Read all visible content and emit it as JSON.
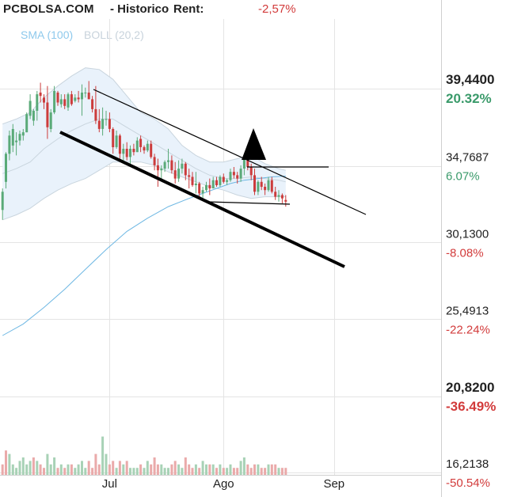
{
  "header": {
    "site": "PCBOLSA.COM",
    "page": "- Historico",
    "rent_label": "Rent:",
    "rent_value": "-2,57%"
  },
  "legend": {
    "sma": "SMA (100)",
    "boll": "BOLL (20,2)"
  },
  "colors": {
    "up": "#5aaa78",
    "down": "#cc3c3c",
    "sma": "#6db7e3",
    "boll_fill": "#e9f2fb",
    "boll_line": "#c9d5de",
    "grid": "#e4e4e4",
    "volume_up": "#a8d2b6",
    "volume_down": "#eaaaaa"
  },
  "chart_data": {
    "type": "candlestick",
    "y_axis": {
      "ticks": [
        {
          "value": 39.44,
          "label": "39,4400",
          "pct": "20.32%",
          "bold": true
        },
        {
          "value": 34.7687,
          "label": "34,7687",
          "pct": "6.07%",
          "bold": false
        },
        {
          "value": 30.13,
          "label": "30,1300",
          "pct": "-8.08%",
          "bold": false
        },
        {
          "value": 25.4913,
          "label": "25,4913",
          "pct": "-22.24%",
          "bold": false
        },
        {
          "value": 20.82,
          "label": "20,8200",
          "pct": "-36.49%",
          "bold": true
        },
        {
          "value": 16.2138,
          "label": "16,2138",
          "pct": "-50.54%",
          "bold": false
        }
      ],
      "range": [
        16.2138,
        39.44
      ]
    },
    "x_axis": {
      "ticks": [
        {
          "index": 31,
          "label": "Jul"
        },
        {
          "index": 64,
          "label": "Ago"
        },
        {
          "index": 96,
          "label": "Sep"
        }
      ],
      "range": [
        -0.5,
        127
      ]
    },
    "grid": true,
    "candles": [
      [
        32.1,
        33.4,
        31.5,
        33.2
      ],
      [
        33.8,
        35.6,
        33.4,
        35.5
      ],
      [
        35.5,
        36.9,
        35.1,
        36.6
      ],
      [
        36.0,
        37.3,
        35.6,
        37.0
      ],
      [
        36.2,
        36.8,
        35.4,
        36.3
      ],
      [
        36.3,
        36.9,
        36.0,
        36.7
      ],
      [
        36.6,
        37.0,
        36.3,
        36.8
      ],
      [
        36.8,
        38.0,
        36.8,
        37.9
      ],
      [
        37.8,
        39.1,
        37.6,
        38.7
      ],
      [
        37.5,
        38.2,
        37.2,
        38.1
      ],
      [
        38.1,
        39.3,
        37.5,
        39.1
      ],
      [
        39.2,
        39.8,
        38.6,
        39.0
      ],
      [
        38.9,
        39.1,
        38.2,
        38.6
      ],
      [
        38.6,
        39.6,
        36.4,
        37.1
      ],
      [
        37.0,
        38.2,
        36.8,
        38.0
      ],
      [
        38.0,
        39.6,
        37.9,
        39.3
      ],
      [
        39.2,
        39.3,
        38.4,
        38.6
      ],
      [
        38.5,
        39.1,
        38.3,
        38.8
      ],
      [
        38.8,
        39.1,
        38.2,
        38.4
      ],
      [
        38.3,
        39.2,
        38.1,
        39.1
      ],
      [
        39.1,
        39.3,
        38.4,
        38.5
      ],
      [
        38.7,
        39.1,
        38.6,
        38.9
      ],
      [
        38.9,
        39.3,
        38.6,
        38.8
      ],
      [
        38.8,
        39.7,
        37.8,
        39.2
      ],
      [
        39.2,
        39.5,
        38.9,
        39.2
      ],
      [
        39.2,
        39.9,
        38.8,
        38.8
      ],
      [
        38.8,
        39.0,
        38.0,
        38.2
      ],
      [
        38.2,
        39.6,
        37.3,
        37.5
      ],
      [
        37.5,
        38.2,
        36.8,
        37.0
      ],
      [
        37.0,
        38.3,
        36.6,
        37.6
      ],
      [
        37.6,
        38.1,
        37.2,
        37.6
      ],
      [
        37.6,
        38.0,
        36.8,
        37.0
      ],
      [
        37.0,
        37.1,
        35.5,
        35.9
      ],
      [
        35.9,
        36.9,
        35.8,
        36.6
      ],
      [
        36.6,
        36.7,
        35.2,
        35.5
      ],
      [
        35.5,
        36.1,
        34.9,
        35.8
      ],
      [
        35.8,
        36.2,
        35.1,
        35.3
      ],
      [
        35.3,
        36.0,
        34.8,
        35.8
      ],
      [
        35.8,
        36.1,
        35.4,
        35.6
      ],
      [
        35.6,
        36.5,
        35.6,
        36.3
      ],
      [
        36.4,
        36.6,
        35.6,
        35.9
      ],
      [
        35.9,
        36.0,
        35.5,
        35.7
      ],
      [
        35.7,
        36.3,
        35.6,
        36.1
      ],
      [
        36.1,
        36.3,
        35.2,
        35.3
      ],
      [
        35.3,
        35.5,
        34.5,
        34.8
      ],
      [
        34.8,
        35.2,
        33.5,
        34.5
      ],
      [
        34.5,
        34.8,
        34.0,
        34.6
      ],
      [
        34.6,
        35.1,
        34.4,
        35.0
      ],
      [
        35.0,
        35.8,
        34.6,
        35.1
      ],
      [
        35.1,
        35.4,
        34.3,
        34.5
      ],
      [
        34.5,
        35.0,
        33.7,
        34.0
      ],
      [
        34.0,
        35.1,
        33.8,
        34.6
      ],
      [
        34.6,
        35.2,
        34.3,
        34.9
      ],
      [
        34.9,
        35.0,
        33.9,
        34.2
      ],
      [
        34.2,
        34.6,
        33.4,
        34.1
      ],
      [
        34.1,
        34.4,
        33.5,
        33.6
      ],
      [
        33.6,
        34.4,
        33.1,
        33.7
      ],
      [
        33.7,
        33.8,
        32.9,
        33.1
      ],
      [
        33.1,
        33.5,
        32.8,
        33.3
      ],
      [
        33.3,
        33.8,
        33.2,
        33.6
      ],
      [
        33.6,
        34.0,
        33.0,
        33.4
      ],
      [
        33.4,
        34.1,
        33.4,
        33.9
      ],
      [
        33.9,
        34.1,
        33.5,
        33.6
      ],
      [
        33.6,
        34.2,
        33.5,
        34.1
      ],
      [
        34.1,
        34.3,
        33.7,
        33.8
      ],
      [
        33.8,
        34.0,
        33.6,
        33.9
      ],
      [
        33.9,
        34.6,
        33.8,
        34.4
      ],
      [
        34.4,
        34.7,
        34.0,
        34.2
      ],
      [
        34.2,
        34.4,
        33.7,
        34.0
      ],
      [
        34.0,
        34.8,
        33.8,
        34.6
      ],
      [
        34.6,
        35.4,
        34.2,
        35.3
      ],
      [
        35.3,
        35.5,
        34.5,
        34.7
      ],
      [
        34.7,
        34.9,
        33.9,
        34.2
      ],
      [
        34.2,
        34.6,
        33.0,
        33.2
      ],
      [
        33.2,
        33.9,
        33.0,
        33.8
      ],
      [
        33.8,
        34.1,
        33.3,
        33.5
      ],
      [
        33.5,
        33.7,
        33.0,
        33.3
      ],
      [
        33.3,
        34.1,
        33.2,
        33.9
      ],
      [
        33.9,
        34.1,
        33.1,
        33.2
      ],
      [
        33.2,
        33.5,
        32.7,
        32.9
      ],
      [
        32.9,
        33.3,
        32.6,
        33.0
      ],
      [
        33.0,
        33.1,
        32.5,
        32.8
      ],
      [
        32.7,
        33.0,
        32.3,
        32.6
      ]
    ],
    "volume": [
      [
        3,
        0
      ],
      [
        7,
        0
      ],
      [
        6,
        1
      ],
      [
        3,
        1
      ],
      [
        2,
        1
      ],
      [
        4,
        1
      ],
      [
        5,
        1
      ],
      [
        3,
        1
      ],
      [
        4,
        1
      ],
      [
        5,
        0
      ],
      [
        4,
        1
      ],
      [
        3,
        0
      ],
      [
        2,
        0
      ],
      [
        6,
        1
      ],
      [
        3,
        1
      ],
      [
        5,
        1
      ],
      [
        2,
        0
      ],
      [
        3,
        1
      ],
      [
        2,
        0
      ],
      [
        3,
        1
      ],
      [
        3,
        0
      ],
      [
        2,
        1
      ],
      [
        3,
        1
      ],
      [
        4,
        1
      ],
      [
        2,
        1
      ],
      [
        4,
        0
      ],
      [
        2,
        0
      ],
      [
        6,
        0
      ],
      [
        3,
        0
      ],
      [
        11,
        1
      ],
      [
        6,
        1
      ],
      [
        3,
        0
      ],
      [
        4,
        0
      ],
      [
        2,
        1
      ],
      [
        4,
        0
      ],
      [
        3,
        1
      ],
      [
        4,
        0
      ],
      [
        2,
        1
      ],
      [
        2,
        1
      ],
      [
        2,
        1
      ],
      [
        3,
        0
      ],
      [
        2,
        1
      ],
      [
        4,
        1
      ],
      [
        3,
        0
      ],
      [
        5,
        0
      ],
      [
        3,
        0
      ],
      [
        3,
        1
      ],
      [
        2,
        1
      ],
      [
        2,
        1
      ],
      [
        3,
        0
      ],
      [
        4,
        0
      ],
      [
        3,
        1
      ],
      [
        2,
        1
      ],
      [
        5,
        0
      ],
      [
        3,
        0
      ],
      [
        2,
        0
      ],
      [
        3,
        1
      ],
      [
        2,
        0
      ],
      [
        4,
        1
      ],
      [
        3,
        1
      ],
      [
        3,
        0
      ],
      [
        3,
        1
      ],
      [
        2,
        0
      ],
      [
        3,
        1
      ],
      [
        2,
        0
      ],
      [
        2,
        1
      ],
      [
        3,
        1
      ],
      [
        2,
        0
      ],
      [
        2,
        0
      ],
      [
        4,
        1
      ],
      [
        5,
        1
      ],
      [
        3,
        0
      ],
      [
        2,
        0
      ],
      [
        3,
        0
      ],
      [
        3,
        1
      ],
      [
        2,
        0
      ],
      [
        2,
        0
      ],
      [
        3,
        1
      ],
      [
        3,
        0
      ],
      [
        3,
        0
      ],
      [
        2,
        1
      ],
      [
        2,
        0
      ],
      [
        2,
        0
      ]
    ],
    "sma_100": [
      [
        0,
        24.5
      ],
      [
        6,
        25.2
      ],
      [
        12,
        26.2
      ],
      [
        18,
        27.3
      ],
      [
        24,
        28.5
      ],
      [
        30,
        29.7
      ],
      [
        36,
        30.8
      ],
      [
        42,
        31.6
      ],
      [
        48,
        32.3
      ],
      [
        54,
        32.8
      ],
      [
        58,
        33.1
      ],
      [
        62,
        33.4
      ],
      [
        66,
        33.7
      ],
      [
        70,
        33.9
      ],
      [
        74,
        34.0
      ],
      [
        78,
        34.1
      ],
      [
        82,
        34.15
      ]
    ],
    "boll_upper": [
      [
        0,
        37.3
      ],
      [
        4,
        37.6
      ],
      [
        8,
        38.0
      ],
      [
        12,
        38.9
      ],
      [
        16,
        39.6
      ],
      [
        20,
        40.2
      ],
      [
        24,
        40.7
      ],
      [
        28,
        40.6
      ],
      [
        32,
        40.0
      ],
      [
        36,
        39.0
      ],
      [
        40,
        38.0
      ],
      [
        44,
        37.6
      ],
      [
        48,
        37.0
      ],
      [
        52,
        36.0
      ],
      [
        56,
        35.4
      ],
      [
        60,
        35.0
      ],
      [
        64,
        35.0
      ],
      [
        68,
        35.2
      ],
      [
        72,
        35.4
      ],
      [
        76,
        34.9
      ],
      [
        80,
        34.6
      ],
      [
        82,
        34.5
      ]
    ],
    "boll_middle": [
      [
        0,
        34.3
      ],
      [
        4,
        34.6
      ],
      [
        8,
        35.0
      ],
      [
        12,
        35.8
      ],
      [
        16,
        36.4
      ],
      [
        20,
        36.9
      ],
      [
        24,
        37.3
      ],
      [
        28,
        37.6
      ],
      [
        32,
        37.6
      ],
      [
        36,
        37.1
      ],
      [
        40,
        36.6
      ],
      [
        44,
        36.1
      ],
      [
        48,
        35.6
      ],
      [
        52,
        35.1
      ],
      [
        56,
        34.6
      ],
      [
        60,
        34.2
      ],
      [
        64,
        34.0
      ],
      [
        68,
        34.0
      ],
      [
        72,
        34.1
      ],
      [
        76,
        34.0
      ],
      [
        80,
        33.9
      ],
      [
        82,
        33.8
      ]
    ],
    "boll_lower": [
      [
        0,
        31.5
      ],
      [
        4,
        31.8
      ],
      [
        8,
        32.2
      ],
      [
        12,
        32.8
      ],
      [
        16,
        33.3
      ],
      [
        20,
        33.7
      ],
      [
        24,
        34.0
      ],
      [
        28,
        34.5
      ],
      [
        32,
        35.0
      ],
      [
        36,
        35.0
      ],
      [
        40,
        35.0
      ],
      [
        44,
        34.8
      ],
      [
        48,
        34.4
      ],
      [
        52,
        34.1
      ],
      [
        56,
        33.8
      ],
      [
        60,
        33.5
      ],
      [
        64,
        33.3
      ],
      [
        68,
        33.0
      ],
      [
        72,
        32.8
      ],
      [
        76,
        32.9
      ],
      [
        80,
        32.9
      ],
      [
        82,
        32.9
      ]
    ]
  }
}
